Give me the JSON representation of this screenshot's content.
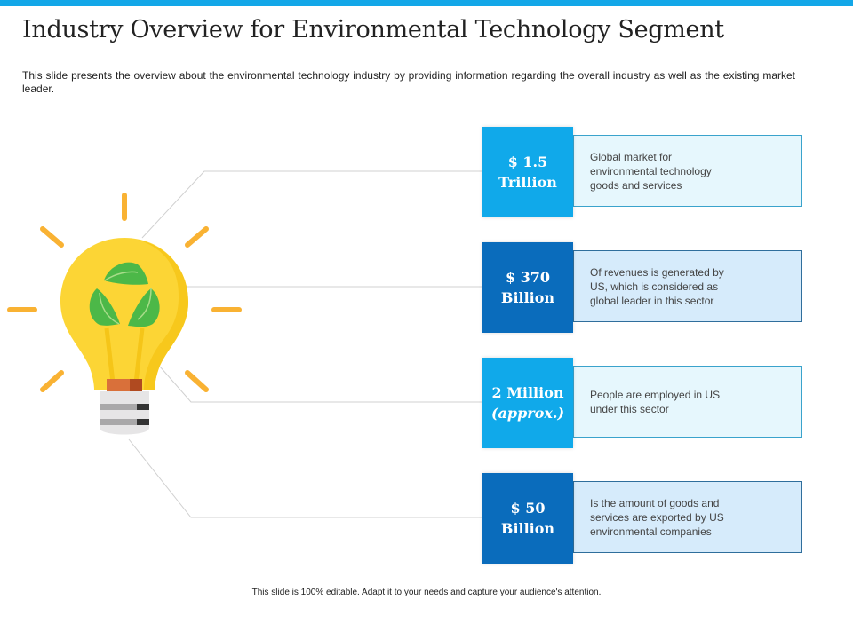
{
  "slide": {
    "title": "Industry Overview for Environmental Technology Segment",
    "subtitle": "This slide presents the overview  about the environmental  technology industry by providing information regarding the overall industry as well as the existing market leader.",
    "footer": "This slide is 100% editable.  Adapt it to your needs and capture your audience's attention."
  },
  "colors": {
    "accent_light": "#10a9ea",
    "accent_dark": "#0a6cbc",
    "bulb": "#fcd535",
    "rays": "#f9b233",
    "leaf": "#4cb848"
  },
  "stats": [
    {
      "value_line1": "$ 1.5",
      "value_line2": "Trillion",
      "description": "Global market for environmental technology goods and services"
    },
    {
      "value_line1": "$ 370",
      "value_line2": "Billion",
      "description": "Of revenues  is generated  by US, which is considered as global leader in this sector"
    },
    {
      "value_line1": "2 Million",
      "value_line2": "(approx.)",
      "description": "People are employed in US under this sector"
    },
    {
      "value_line1": "$ 50",
      "value_line2": "Billion",
      "description": "Is the amount of goods and services are exported by US environmental  companies"
    }
  ]
}
